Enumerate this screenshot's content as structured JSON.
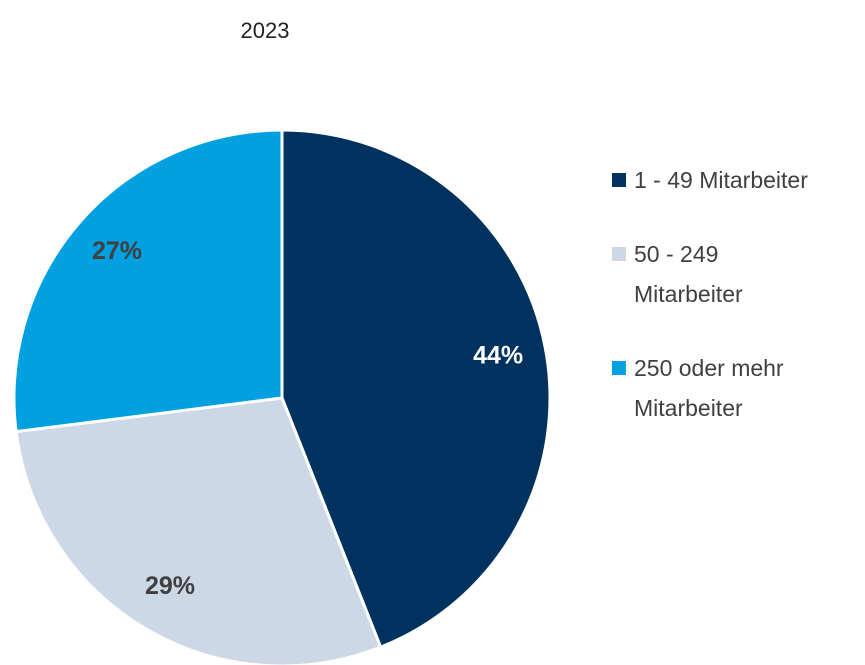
{
  "chart_data": {
    "type": "pie",
    "title": "2023",
    "categories": [
      "1 - 49 Mitarbeiter",
      "50 - 249 Mitarbeiter",
      "250 oder mehr Mitarbeiter"
    ],
    "values": [
      44,
      29,
      27
    ],
    "value_labels": [
      "44%",
      "29%",
      "27%"
    ],
    "colors": [
      "#00325f",
      "#cdd8e6",
      "#00a0e1"
    ],
    "legend": "right"
  }
}
